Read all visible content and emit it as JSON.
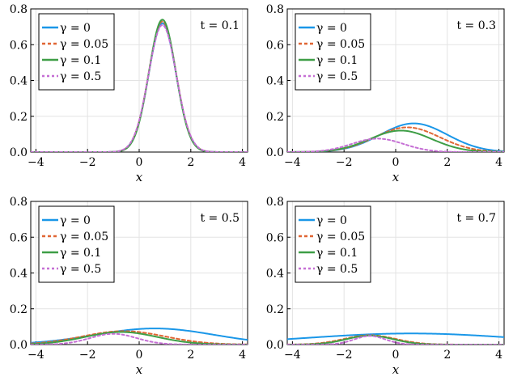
{
  "chart_data": [
    {
      "type": "line",
      "title": "t = 0.1",
      "annotation": "t = 0.1",
      "t": 0.1,
      "xlabel": "x",
      "ylabel": "",
      "xlim": [
        -4.2,
        4.2
      ],
      "ylim": [
        0,
        0.8
      ],
      "xticks": [
        -4,
        -2,
        0,
        2,
        4
      ],
      "yticks": [
        0.0,
        0.2,
        0.4,
        0.6,
        0.8
      ],
      "xtick_labels": [
        "−4",
        "−2",
        "0",
        "2",
        "4"
      ],
      "ytick_labels": [
        "0.0",
        "0.2",
        "0.4",
        "0.6",
        "0.8"
      ],
      "legend": [
        "γ = 0",
        "γ = 0.05",
        "γ = 0.1",
        "γ = 0.5"
      ],
      "series": [
        {
          "name": "γ = 0",
          "mu": 0.9,
          "sigma": 0.53,
          "peak": 0.72
        },
        {
          "name": "γ = 0.05",
          "mu": 0.9,
          "sigma": 0.53,
          "peak": 0.73
        },
        {
          "name": "γ = 0.1",
          "mu": 0.9,
          "sigma": 0.52,
          "peak": 0.74
        },
        {
          "name": "γ = 0.5",
          "mu": 0.9,
          "sigma": 0.54,
          "peak": 0.71
        }
      ]
    },
    {
      "type": "line",
      "title": "t = 0.3",
      "annotation": "t = 0.3",
      "t": 0.3,
      "xlabel": "x",
      "ylabel": "",
      "xlim": [
        -4.2,
        4.2
      ],
      "ylim": [
        0,
        0.8
      ],
      "xticks": [
        -4,
        -2,
        0,
        2,
        4
      ],
      "yticks": [
        0.0,
        0.2,
        0.4,
        0.6,
        0.8
      ],
      "xtick_labels": [
        "−4",
        "−2",
        "0",
        "2",
        "4"
      ],
      "ytick_labels": [
        "0.0",
        "0.2",
        "0.4",
        "0.6",
        "0.8"
      ],
      "legend": [
        "γ = 0",
        "γ = 0.05",
        "γ = 0.1",
        "γ = 0.5"
      ],
      "series": [
        {
          "name": "γ = 0",
          "mu": 0.7,
          "sigma": 1.3,
          "peak": 0.16
        },
        {
          "name": "γ = 0.05",
          "mu": 0.45,
          "sigma": 1.25,
          "peak": 0.138
        },
        {
          "name": "γ = 0.1",
          "mu": 0.2,
          "sigma": 1.2,
          "peak": 0.12
        },
        {
          "name": "γ = 0.5",
          "mu": -0.7,
          "sigma": 1.0,
          "peak": 0.075
        }
      ]
    },
    {
      "type": "line",
      "title": "t = 0.5",
      "annotation": "t = 0.5",
      "t": 0.5,
      "xlabel": "x",
      "ylabel": "",
      "xlim": [
        -4.2,
        4.2
      ],
      "ylim": [
        0,
        0.8
      ],
      "xticks": [
        -4,
        -2,
        0,
        2,
        4
      ],
      "yticks": [
        0.0,
        0.2,
        0.4,
        0.6,
        0.8
      ],
      "xtick_labels": [
        "−4",
        "−2",
        "0",
        "2",
        "4"
      ],
      "ytick_labels": [
        "0.0",
        "0.2",
        "0.4",
        "0.6",
        "0.8"
      ],
      "legend": [
        "γ = 0",
        "γ = 0.05",
        "γ = 0.1",
        "γ = 0.5"
      ],
      "series": [
        {
          "name": "γ = 0",
          "mu": 0.6,
          "sigma": 2.3,
          "peak": 0.09
        },
        {
          "name": "γ = 0.05",
          "mu": -0.6,
          "sigma": 1.6,
          "peak": 0.075
        },
        {
          "name": "γ = 0.1",
          "mu": -0.7,
          "sigma": 1.4,
          "peak": 0.07
        },
        {
          "name": "γ = 0.5",
          "mu": -1.0,
          "sigma": 0.9,
          "peak": 0.06
        }
      ]
    },
    {
      "type": "line",
      "title": "t = 0.7",
      "annotation": "t = 0.7",
      "t": 0.7,
      "xlabel": "x",
      "ylabel": "",
      "xlim": [
        -4.2,
        4.2
      ],
      "ylim": [
        0,
        0.8
      ],
      "xticks": [
        -4,
        -2,
        0,
        2,
        4
      ],
      "yticks": [
        0.0,
        0.2,
        0.4,
        0.6,
        0.8
      ],
      "xtick_labels": [
        "−4",
        "−2",
        "0",
        "2",
        "4"
      ],
      "ytick_labels": [
        "0.0",
        "0.2",
        "0.4",
        "0.6",
        "0.8"
      ],
      "legend": [
        "γ = 0",
        "γ = 0.05",
        "γ = 0.1",
        "γ = 0.5"
      ],
      "series": [
        {
          "name": "γ = 0",
          "mu": 0.6,
          "sigma": 4.0,
          "peak": 0.062
        },
        {
          "name": "γ = 0.05",
          "mu": -1.0,
          "sigma": 1.0,
          "peak": 0.052
        },
        {
          "name": "γ = 0.1",
          "mu": -1.0,
          "sigma": 0.9,
          "peak": 0.05
        },
        {
          "name": "γ = 0.5",
          "mu": -1.0,
          "sigma": 0.6,
          "peak": 0.048
        }
      ]
    }
  ],
  "style": {
    "colors": [
      "#1a97e8",
      "#e06634",
      "#3e9e46",
      "#c56fd4"
    ],
    "dashes": [
      "",
      "4,3",
      "",
      "3,3"
    ]
  }
}
